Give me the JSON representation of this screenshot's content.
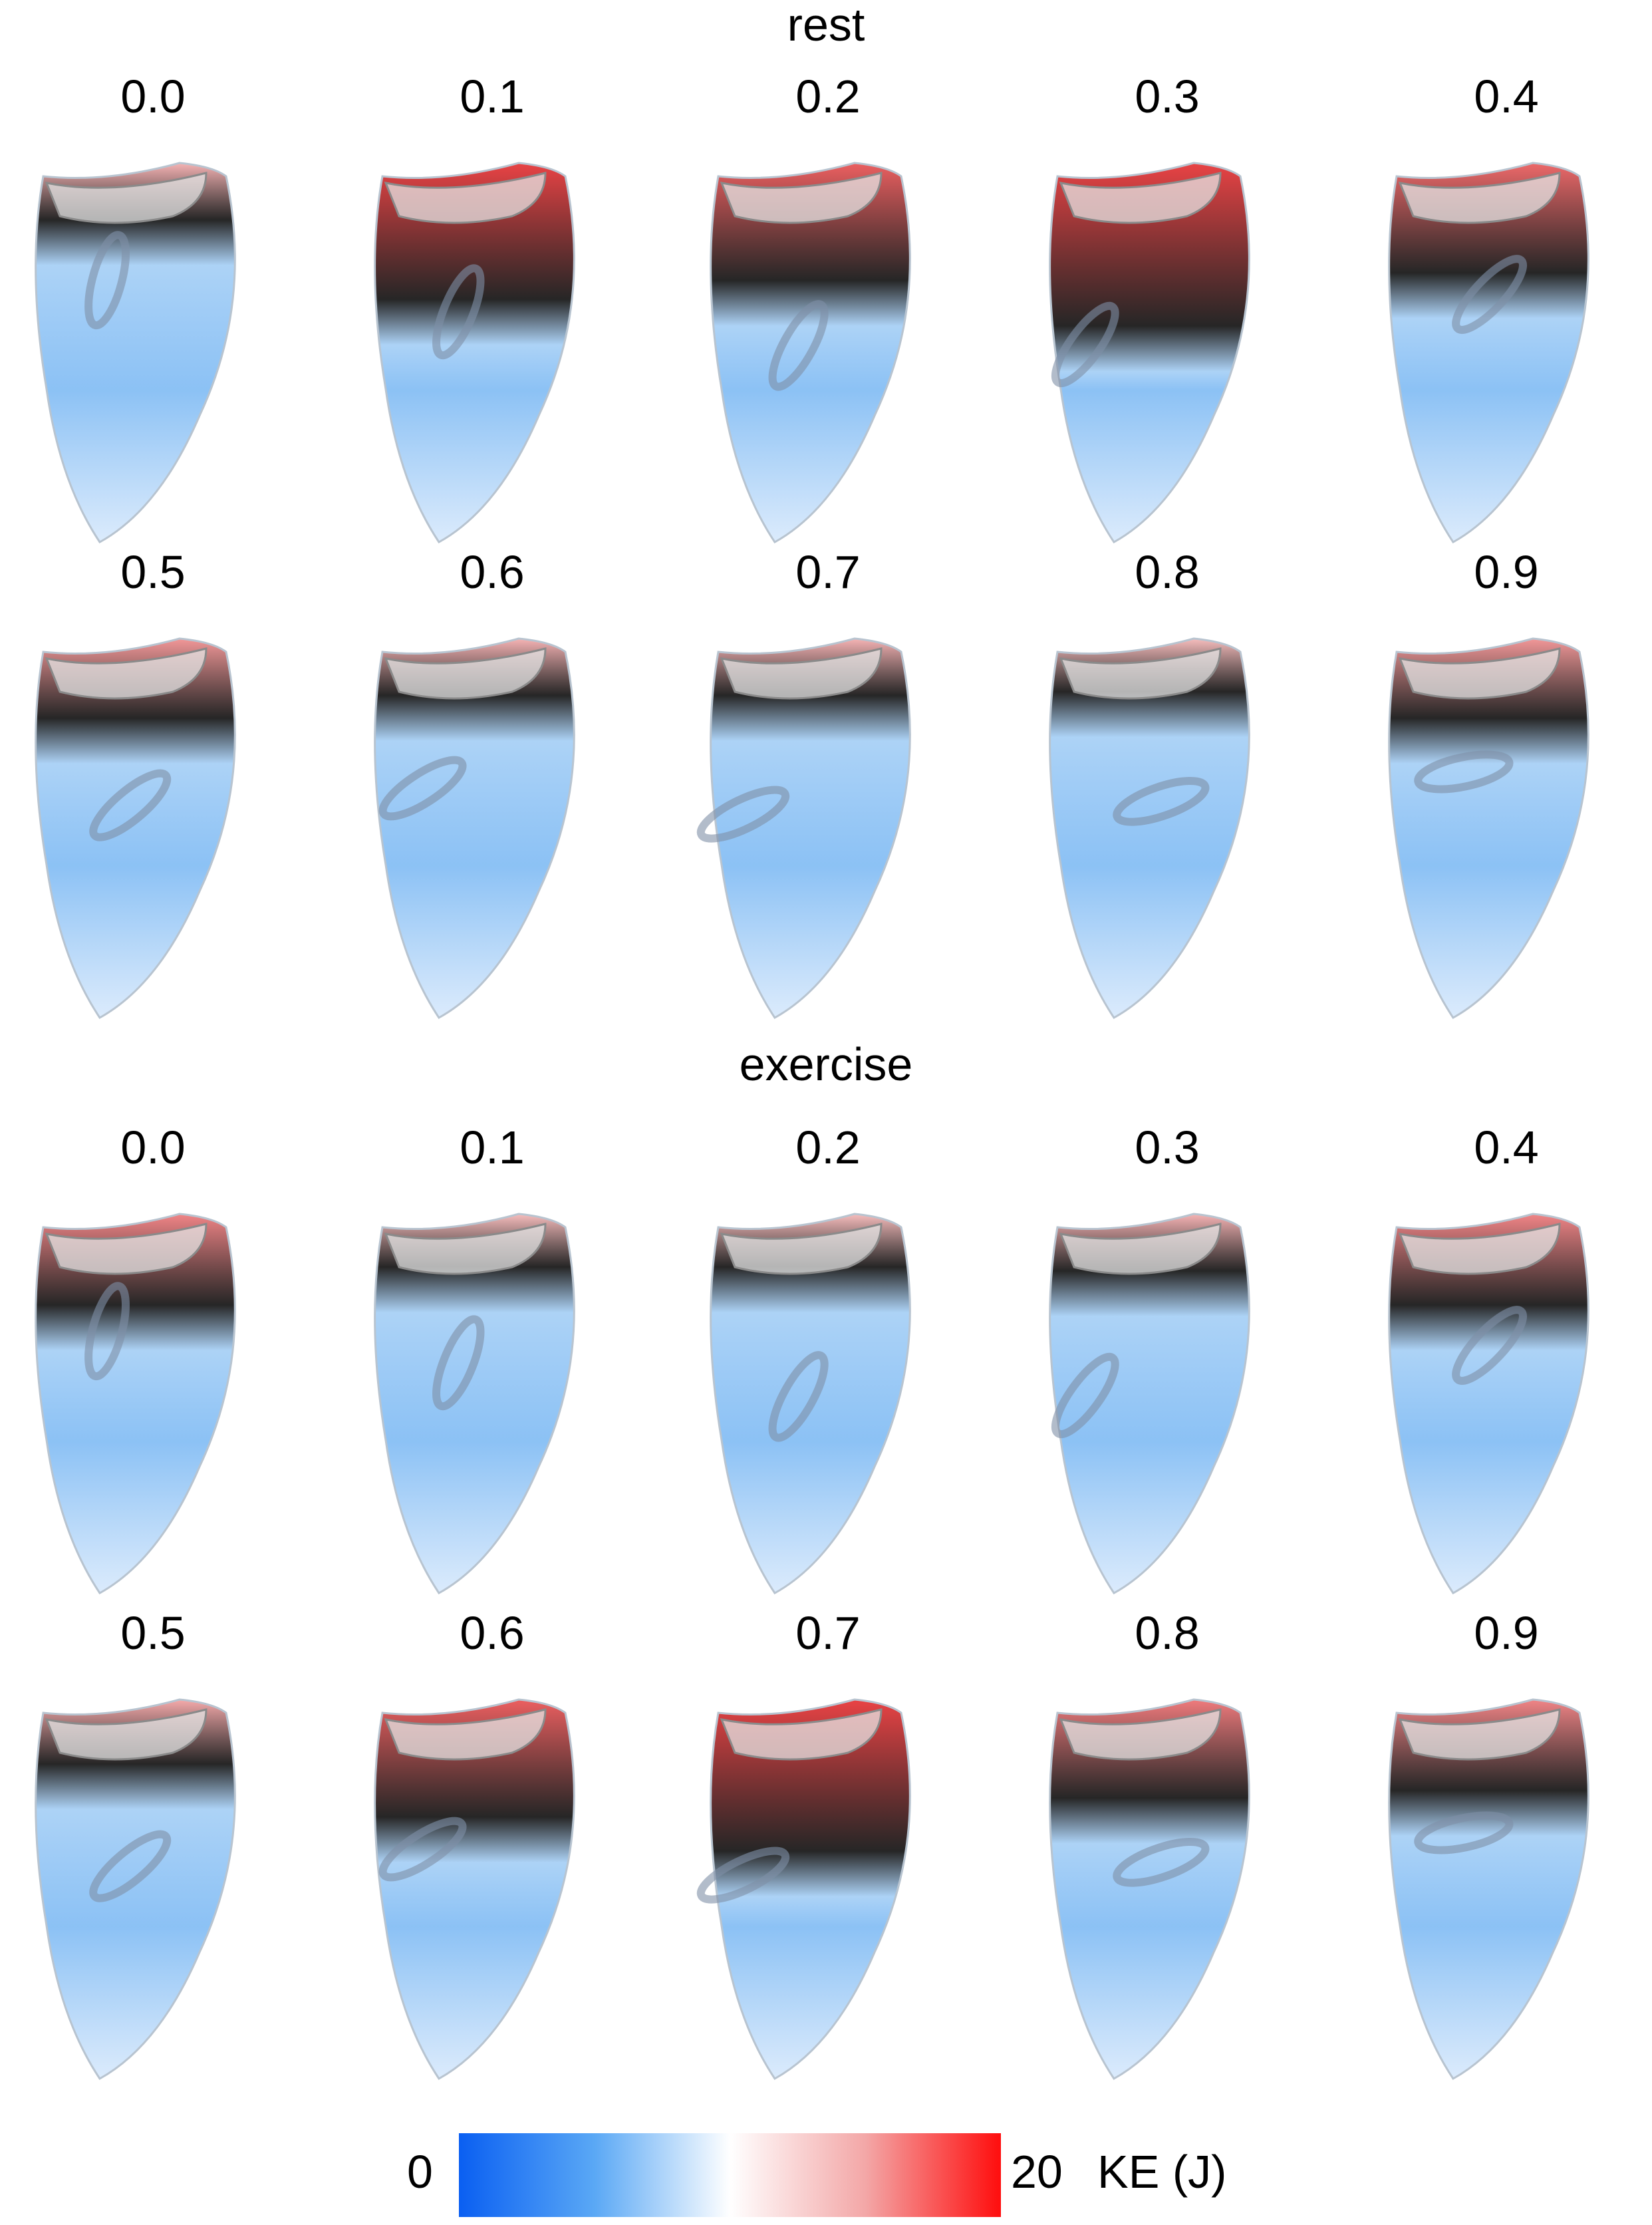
{
  "sections": [
    {
      "title": "rest",
      "frames": [
        {
          "label": "0.0",
          "energy": 0.15
        },
        {
          "label": "0.1",
          "energy": 0.75
        },
        {
          "label": "0.2",
          "energy": 0.6
        },
        {
          "label": "0.3",
          "energy": 0.95
        },
        {
          "label": "0.4",
          "energy": 0.55
        },
        {
          "label": "0.5",
          "energy": 0.3
        },
        {
          "label": "0.6",
          "energy": 0.15
        },
        {
          "label": "0.7",
          "energy": 0.15
        },
        {
          "label": "0.8",
          "energy": 0.1
        },
        {
          "label": "0.9",
          "energy": 0.3
        }
      ]
    },
    {
      "title": "exercise",
      "frames": [
        {
          "label": "0.0",
          "energy": 0.4
        },
        {
          "label": "0.1",
          "energy": 0.1
        },
        {
          "label": "0.2",
          "energy": 0.1
        },
        {
          "label": "0.3",
          "energy": 0.15
        },
        {
          "label": "0.4",
          "energy": 0.4
        },
        {
          "label": "0.5",
          "energy": 0.2
        },
        {
          "label": "0.6",
          "energy": 0.6
        },
        {
          "label": "0.7",
          "energy": 0.85
        },
        {
          "label": "0.8",
          "energy": 0.45
        },
        {
          "label": "0.9",
          "energy": 0.4
        }
      ]
    }
  ],
  "colorbar": {
    "min_label": "0",
    "max_label": "20",
    "unit_label": "KE (J)",
    "colors": [
      "#0a5ff2",
      "#5aa8f5",
      "#ffffff",
      "#f3a7a7",
      "#ff0d0d"
    ]
  }
}
